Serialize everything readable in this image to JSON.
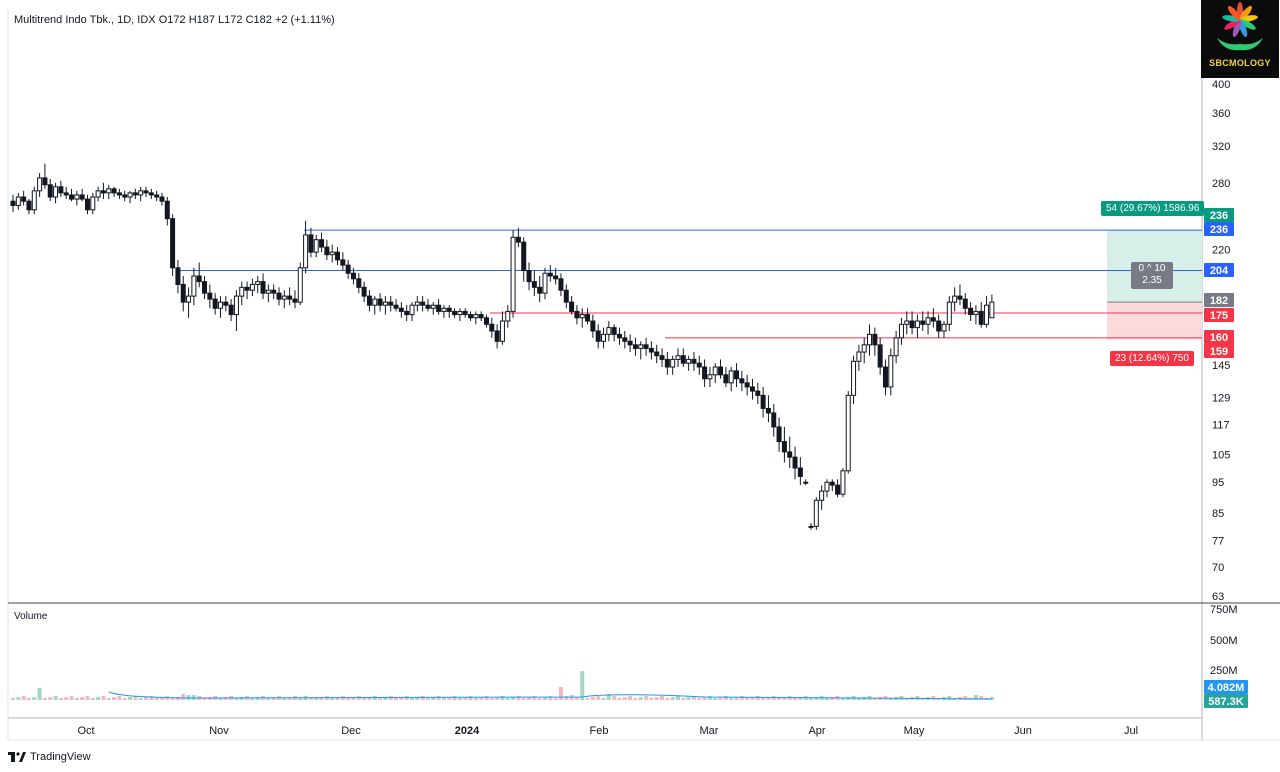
{
  "header": {
    "symbol": "Multitrend Indo Tbk., 1D, IDX",
    "open": "O172",
    "high": "H187",
    "low": "L172",
    "close": "C182",
    "change": "+2 (+1.11%)"
  },
  "volume_pane": {
    "label": "Volume"
  },
  "footer": {
    "brand": "TradingView"
  },
  "logo": {
    "text": "SBCMOLOGY"
  },
  "position_tool": {
    "profit_label": "54 (29.67%) 1586.96",
    "loss_label": "23 (12.64%) 750",
    "ratio_line1": "0 ^ 10",
    "ratio_line2": "2.35"
  },
  "price_tags": [
    {
      "value": "236",
      "color": "#089981"
    },
    {
      "value": "236",
      "color": "#2962ff"
    },
    {
      "value": "204",
      "color": "#2962ff"
    },
    {
      "value": "182",
      "color": "#787b86"
    },
    {
      "value": "175",
      "color": "#f23645"
    },
    {
      "value": "160",
      "color": "#f23645"
    },
    {
      "value": "159",
      "color": "#f23645"
    }
  ],
  "volume_tags": [
    {
      "value": "4.082M",
      "color": "#2196f3"
    },
    {
      "value": "587.3K",
      "color": "#26a69a"
    }
  ],
  "colors": {
    "blue_line": "#2962ff",
    "red_line": "#f23645",
    "profit_fill": "#d7efe9",
    "loss_fill": "#fbd9dc",
    "up_vol": "#a5d6c6",
    "down_vol": "#f5b8bd",
    "vol_ma": "#2196f3"
  },
  "chart_data": {
    "type": "candlestick",
    "title": "Multitrend Indo Tbk., 1D, IDX",
    "y_scale": "log",
    "y_ticks": [
      400,
      360,
      320,
      280,
      220,
      145,
      129,
      117,
      105,
      95,
      85,
      77,
      70,
      63
    ],
    "x_ticks": [
      "Oct",
      "Nov",
      "Dec",
      "2024",
      "Feb",
      "Mar",
      "Apr",
      "May",
      "Jun",
      "Jul"
    ],
    "volume_ticks": [
      "750M",
      "500M",
      "250M"
    ],
    "horizontal_lines": [
      {
        "value": 236,
        "color": "blue"
      },
      {
        "value": 204,
        "color": "blue"
      },
      {
        "value": 175,
        "color": "red"
      },
      {
        "value": 160,
        "color": "red"
      }
    ],
    "position": {
      "entry": 182,
      "target": 236,
      "stop": 159
    },
    "candles": [
      [
        262,
        268,
        252,
        258
      ],
      [
        258,
        270,
        254,
        266
      ],
      [
        266,
        272,
        258,
        262
      ],
      [
        262,
        264,
        250,
        254
      ],
      [
        254,
        276,
        250,
        272
      ],
      [
        272,
        290,
        266,
        285
      ],
      [
        285,
        300,
        274,
        278
      ],
      [
        278,
        284,
        262,
        266
      ],
      [
        266,
        280,
        260,
        276
      ],
      [
        276,
        282,
        266,
        270
      ],
      [
        270,
        276,
        264,
        268
      ],
      [
        268,
        274,
        262,
        264
      ],
      [
        264,
        272,
        258,
        268
      ],
      [
        268,
        274,
        262,
        264
      ],
      [
        264,
        268,
        250,
        254
      ],
      [
        254,
        270,
        250,
        266
      ],
      [
        266,
        276,
        262,
        272
      ],
      [
        272,
        280,
        264,
        270
      ],
      [
        270,
        278,
        264,
        274
      ],
      [
        274,
        276,
        266,
        270
      ],
      [
        270,
        274,
        264,
        268
      ],
      [
        268,
        272,
        262,
        266
      ],
      [
        266,
        272,
        260,
        270
      ],
      [
        270,
        274,
        264,
        268
      ],
      [
        268,
        276,
        262,
        272
      ],
      [
        272,
        276,
        266,
        270
      ],
      [
        270,
        274,
        264,
        268
      ],
      [
        268,
        272,
        262,
        266
      ],
      [
        266,
        270,
        258,
        262
      ],
      [
        262,
        266,
        240,
        246
      ],
      [
        246,
        250,
        200,
        206
      ],
      [
        206,
        212,
        188,
        194
      ],
      [
        194,
        200,
        176,
        182
      ],
      [
        182,
        192,
        172,
        186
      ],
      [
        186,
        206,
        180,
        200
      ],
      [
        200,
        210,
        192,
        196
      ],
      [
        196,
        200,
        184,
        188
      ],
      [
        188,
        194,
        178,
        184
      ],
      [
        184,
        188,
        174,
        178
      ],
      [
        178,
        186,
        172,
        182
      ],
      [
        182,
        186,
        176,
        180
      ],
      [
        180,
        184,
        170,
        174
      ],
      [
        174,
        190,
        164,
        186
      ],
      [
        186,
        196,
        180,
        192
      ],
      [
        192,
        196,
        184,
        190
      ],
      [
        190,
        198,
        186,
        194
      ],
      [
        194,
        200,
        188,
        196
      ],
      [
        196,
        202,
        184,
        188
      ],
      [
        188,
        194,
        182,
        190
      ],
      [
        190,
        194,
        184,
        188
      ],
      [
        188,
        192,
        180,
        184
      ],
      [
        184,
        190,
        178,
        186
      ],
      [
        186,
        192,
        180,
        184
      ],
      [
        184,
        190,
        178,
        182
      ],
      [
        182,
        210,
        180,
        206
      ],
      [
        206,
        244,
        202,
        232
      ],
      [
        232,
        238,
        214,
        218
      ],
      [
        218,
        232,
        214,
        228
      ],
      [
        228,
        234,
        218,
        222
      ],
      [
        222,
        228,
        212,
        216
      ],
      [
        216,
        224,
        210,
        218
      ],
      [
        218,
        222,
        208,
        212
      ],
      [
        212,
        218,
        204,
        208
      ],
      [
        208,
        212,
        198,
        202
      ],
      [
        202,
        206,
        194,
        198
      ],
      [
        198,
        202,
        188,
        192
      ],
      [
        192,
        196,
        182,
        186
      ],
      [
        186,
        190,
        176,
        180
      ],
      [
        180,
        186,
        174,
        184
      ],
      [
        184,
        188,
        176,
        180
      ],
      [
        180,
        186,
        174,
        182
      ],
      [
        182,
        186,
        176,
        180
      ],
      [
        180,
        184,
        176,
        178
      ],
      [
        178,
        182,
        172,
        176
      ],
      [
        176,
        180,
        170,
        174
      ],
      [
        174,
        182,
        170,
        180
      ],
      [
        180,
        186,
        176,
        182
      ],
      [
        182,
        186,
        176,
        180
      ],
      [
        180,
        184,
        176,
        178
      ],
      [
        178,
        182,
        174,
        180
      ],
      [
        180,
        184,
        174,
        176
      ],
      [
        176,
        180,
        172,
        178
      ],
      [
        178,
        180,
        172,
        176
      ],
      [
        176,
        178,
        172,
        174
      ],
      [
        174,
        178,
        170,
        176
      ],
      [
        176,
        178,
        172,
        174
      ],
      [
        174,
        176,
        170,
        172
      ],
      [
        172,
        176,
        168,
        174
      ],
      [
        174,
        176,
        170,
        172
      ],
      [
        172,
        174,
        166,
        168
      ],
      [
        168,
        172,
        160,
        164
      ],
      [
        164,
        168,
        154,
        158
      ],
      [
        158,
        176,
        156,
        170
      ],
      [
        170,
        180,
        166,
        176
      ],
      [
        176,
        236,
        172,
        230
      ],
      [
        230,
        238,
        222,
        226
      ],
      [
        226,
        230,
        196,
        204
      ],
      [
        204,
        210,
        190,
        196
      ],
      [
        196,
        204,
        186,
        192
      ],
      [
        192,
        200,
        182,
        188
      ],
      [
        188,
        206,
        184,
        202
      ],
      [
        202,
        208,
        196,
        200
      ],
      [
        200,
        206,
        194,
        198
      ],
      [
        198,
        202,
        186,
        190
      ],
      [
        190,
        194,
        178,
        182
      ],
      [
        182,
        186,
        174,
        176
      ],
      [
        176,
        180,
        168,
        172
      ],
      [
        172,
        178,
        166,
        174
      ],
      [
        174,
        178,
        168,
        170
      ],
      [
        170,
        174,
        160,
        164
      ],
      [
        164,
        168,
        154,
        158
      ],
      [
        158,
        166,
        154,
        162
      ],
      [
        162,
        170,
        158,
        166
      ],
      [
        166,
        168,
        158,
        162
      ],
      [
        162,
        166,
        156,
        160
      ],
      [
        160,
        164,
        154,
        158
      ],
      [
        158,
        162,
        152,
        156
      ],
      [
        156,
        160,
        150,
        154
      ],
      [
        154,
        158,
        148,
        156
      ],
      [
        156,
        160,
        150,
        154
      ],
      [
        154,
        158,
        148,
        152
      ],
      [
        152,
        156,
        146,
        150
      ],
      [
        150,
        154,
        144,
        148
      ],
      [
        148,
        152,
        140,
        144
      ],
      [
        144,
        150,
        140,
        148
      ],
      [
        148,
        154,
        144,
        150
      ],
      [
        150,
        154,
        144,
        146
      ],
      [
        146,
        150,
        142,
        148
      ],
      [
        148,
        152,
        142,
        146
      ],
      [
        146,
        150,
        140,
        144
      ],
      [
        144,
        148,
        134,
        138
      ],
      [
        138,
        144,
        134,
        140
      ],
      [
        140,
        146,
        136,
        144
      ],
      [
        144,
        148,
        138,
        140
      ],
      [
        140,
        144,
        134,
        136
      ],
      [
        136,
        144,
        132,
        142
      ],
      [
        142,
        146,
        134,
        138
      ],
      [
        138,
        142,
        132,
        136
      ],
      [
        136,
        140,
        130,
        134
      ],
      [
        134,
        138,
        128,
        132
      ],
      [
        132,
        136,
        126,
        130
      ],
      [
        130,
        134,
        120,
        124
      ],
      [
        124,
        130,
        118,
        122
      ],
      [
        122,
        126,
        112,
        116
      ],
      [
        116,
        120,
        106,
        110
      ],
      [
        110,
        116,
        102,
        106
      ],
      [
        106,
        112,
        100,
        104
      ],
      [
        104,
        108,
        96,
        100
      ],
      [
        100,
        104,
        94,
        97
      ],
      [
        95,
        96,
        94,
        95
      ],
      [
        81,
        82,
        80,
        81
      ],
      [
        81,
        90,
        80,
        89
      ],
      [
        89,
        94,
        86,
        92
      ],
      [
        92,
        96,
        90,
        95
      ],
      [
        95,
        96,
        92,
        94
      ],
      [
        94,
        96,
        90,
        91
      ],
      [
        91,
        100,
        90,
        99
      ],
      [
        99,
        132,
        98,
        130
      ],
      [
        130,
        150,
        126,
        147
      ],
      [
        147,
        156,
        142,
        152
      ],
      [
        152,
        160,
        146,
        156
      ],
      [
        156,
        168,
        150,
        162
      ],
      [
        162,
        166,
        150,
        156
      ],
      [
        156,
        160,
        140,
        144
      ],
      [
        144,
        148,
        130,
        134
      ],
      [
        134,
        154,
        130,
        150
      ],
      [
        150,
        164,
        146,
        160
      ],
      [
        160,
        172,
        156,
        168
      ],
      [
        168,
        176,
        162,
        170
      ],
      [
        170,
        176,
        162,
        166
      ],
      [
        166,
        174,
        160,
        170
      ],
      [
        170,
        176,
        164,
        168
      ],
      [
        168,
        176,
        162,
        172
      ],
      [
        172,
        178,
        166,
        170
      ],
      [
        170,
        174,
        160,
        164
      ],
      [
        164,
        170,
        160,
        168
      ],
      [
        168,
        186,
        164,
        182
      ],
      [
        182,
        192,
        176,
        186
      ],
      [
        186,
        194,
        180,
        184
      ],
      [
        184,
        188,
        174,
        178
      ],
      [
        178,
        182,
        170,
        174
      ],
      [
        174,
        180,
        168,
        176
      ],
      [
        176,
        182,
        166,
        168
      ],
      [
        168,
        186,
        166,
        180
      ],
      [
        172,
        187,
        172,
        182
      ]
    ]
  }
}
